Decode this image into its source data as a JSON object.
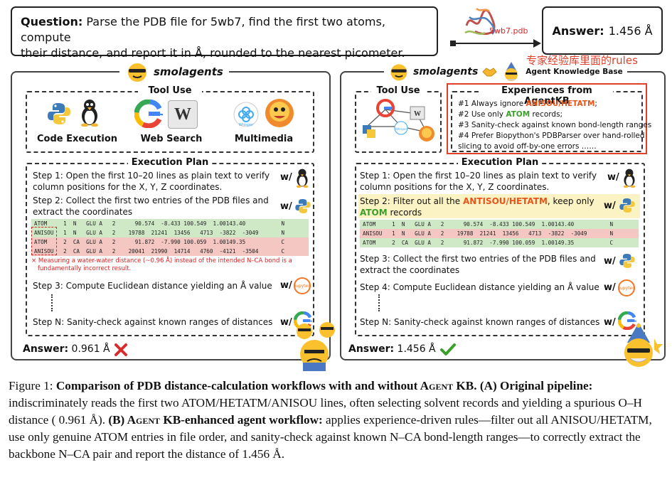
{
  "question": {
    "label": "Question:",
    "line1": "Parse the PDB file for 5wb7, find the first two atoms, compute",
    "line2": "their distance, and report it in Å, rounded to the nearest picometer."
  },
  "file_label": "5wb7.pdb",
  "answer_box": {
    "label": "Answer:",
    "value": "1.456 Å"
  },
  "left": {
    "logo": "smolagents",
    "tool_use_title": "Tool Use",
    "tools": [
      "Code Execution",
      "Web Search",
      "Multimedia"
    ],
    "plan_title": "Execution Plan",
    "step1a": "Step 1: Open the first 10–20 lines as plain text to verify",
    "step1b": "column positions for the X, Y, Z coordinates.",
    "step2a": "Step 2: Collect the first two entries of the PDB files and",
    "step2b": "extract the coordinates",
    "pdb_lines": [
      "ATOM     1  N   GLU A   2      90.574  -8.433 100.549  1.00143.40           N",
      "ANISOU   1  N   GLU A   2    19788  21241  13456   4713  -3822  -3049       N",
      "ATOM     2  CA  GLU A   2      91.872  -7.990 100.059  1.00149.35           C",
      "ANISOU   2  CA  GLU A   2    20041  21990  14714   4760  -4121  -3504       C"
    ],
    "warning1": "× Measuring a water-water distance (~0.96 Å) instead of the intended N–CA bond is a",
    "warning2": "fundamentally incorrect result.",
    "step3": "Step 3: Compute Euclidean distance yielding an Å value",
    "stepN": "Step N: Sanity-check against known ranges of distances",
    "answer_label": "Answer:",
    "answer_value": "0.961 Å"
  },
  "right": {
    "logo": "smolagents",
    "kb_title": "Agent Knowledge Base",
    "kb_note": "专家经验库里面的rules",
    "tool_use_title": "Tool Use",
    "exp_title": "Experiences from AgentKB",
    "exp1a": "#1 Always ignore ",
    "exp1b": "ANISOU/HETATM",
    "exp1c": ";",
    "exp2a": "#2 Use only ",
    "exp2b": "ATOM",
    "exp2c": " records;",
    "exp3": "#3 Sanity-check against known bond-length ranges",
    "exp4a": "#4 Prefer Biopython's PDBParser over hand-rolled",
    "exp4b": "slicing to avoid off-by-one errors ……",
    "plan_title": "Execution Plan",
    "step1a": "Step 1: Open the first 10–20 lines as plain text to verify",
    "step1b": "column positions for the X, Y, Z coordinates.",
    "step2a": "Step 2: Filter out all the ",
    "step2b": "ANTISOU/HETATM",
    "step2c": ", keep only",
    "step2d": "ATOM",
    "step2e": " records",
    "pdb_lines": [
      "ATOM     1  N   GLU A   2      90.574  -8.433 100.549  1.00143.40           N",
      "ANISOU   1  N   GLU A   2    19788  21241  13456   4713  -3822  -3049       N",
      "ATOM     2  CA  GLU A   2      91.872  -7.990 100.059  1.00149.35           C"
    ],
    "step3a": "Step 3: Collect the first two entries of the PDB files and",
    "step3b": "extract the coordinates",
    "step4": "Step 4: Compute Euclidean distance yielding an Å value",
    "stepN": "Step N: Sanity-check against known ranges of distances",
    "answer_label": "Answer:",
    "answer_value": "1.456 Å"
  },
  "caption": {
    "fig": "Figure 1: ",
    "title": "Comparison of PDB distance-calculation workflows with and without A",
    "title_sc": "gent",
    "title_end": " KB.",
    "a_label": "(A) Original pipeline:",
    "a_text": " indiscriminately reads the first two ATOM/HETATM/ANISOU lines, often selecting solvent records and yielding a spurious O–H distance ( 0.961 Å). ",
    "b_label_1": "(B) A",
    "b_label_sc": "gent",
    "b_label_2": " KB-enhanced agent workflow:",
    "b_text": " applies experience-driven rules—filter out all ANISOU/HETATM, use only genuine ATOM entries in file order, and sanity-check against known N–CA bond-length ranges—to correctly extract the backbone N–CA pair and report the distance of 1.456 Å."
  },
  "icons": [
    "python-icon",
    "linux-icon",
    "google-icon",
    "wiki-icon",
    "whisper-icon",
    "hugging-face-icon",
    "jupyter-icon",
    "protein-icon",
    "handshake-icon"
  ],
  "colors": {
    "highlight_orange": "#e8551a",
    "highlight_green": "#3aa02a",
    "kb_box": "#e0402a",
    "ok_green": "#3aa02a",
    "bad_red": "#d92b2b"
  }
}
